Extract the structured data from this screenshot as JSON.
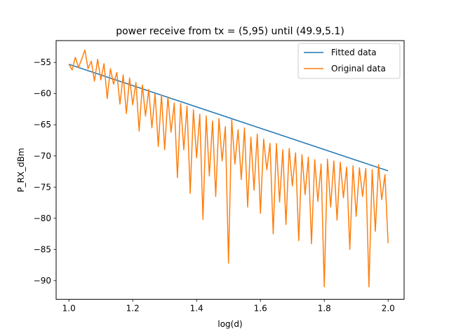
{
  "chart_data": {
    "type": "line",
    "title": "power receive  from tx = (5,95) until (49.9,5.1)",
    "xlabel": "log(d)",
    "ylabel": "P_RX_dBm",
    "xlim": [
      0.96,
      2.05
    ],
    "ylim": [
      -93,
      -51.5
    ],
    "x_ticks": [
      1.0,
      1.2,
      1.4,
      1.6,
      1.8,
      2.0
    ],
    "x_tick_labels": [
      "1.0",
      "1.2",
      "1.4",
      "1.6",
      "1.8",
      "2.0"
    ],
    "y_ticks": [
      -55,
      -60,
      -65,
      -70,
      -75,
      -80,
      -85,
      -90
    ],
    "y_tick_labels": [
      "−55",
      "−60",
      "−65",
      "−70",
      "−75",
      "−80",
      "−85",
      "−90"
    ],
    "grid": false,
    "legend_position": "upper right",
    "series": [
      {
        "name": "Fitted data",
        "color": "#1f77b4",
        "x": [
          1.0,
          2.0
        ],
        "y": [
          -55.3,
          -72.4
        ]
      },
      {
        "name": "Original data",
        "color": "#ff7f0e",
        "x": [
          1.0,
          1.01,
          1.02,
          1.03,
          1.04,
          1.05,
          1.06,
          1.07,
          1.08,
          1.09,
          1.1,
          1.11,
          1.12,
          1.13,
          1.14,
          1.15,
          1.16,
          1.17,
          1.18,
          1.19,
          1.2,
          1.21,
          1.22,
          1.23,
          1.24,
          1.25,
          1.26,
          1.27,
          1.28,
          1.29,
          1.3,
          1.31,
          1.32,
          1.33,
          1.34,
          1.35,
          1.36,
          1.37,
          1.38,
          1.39,
          1.4,
          1.41,
          1.42,
          1.43,
          1.44,
          1.45,
          1.46,
          1.47,
          1.48,
          1.49,
          1.5,
          1.51,
          1.52,
          1.53,
          1.54,
          1.55,
          1.56,
          1.57,
          1.58,
          1.59,
          1.6,
          1.61,
          1.62,
          1.63,
          1.64,
          1.65,
          1.66,
          1.67,
          1.68,
          1.69,
          1.7,
          1.71,
          1.72,
          1.73,
          1.74,
          1.75,
          1.76,
          1.77,
          1.78,
          1.79,
          1.8,
          1.81,
          1.82,
          1.83,
          1.84,
          1.85,
          1.86,
          1.87,
          1.88,
          1.89,
          1.9,
          1.91,
          1.92,
          1.93,
          1.94,
          1.95,
          1.96,
          1.97,
          1.98,
          1.99,
          2.0
        ],
        "y": [
          -55.3,
          -56.2,
          -54.2,
          -55.8,
          -54.5,
          -53.0,
          -56.0,
          -54.8,
          -58.0,
          -54.5,
          -57.8,
          -55.2,
          -60.8,
          -56.0,
          -58.5,
          -56.6,
          -61.7,
          -57.0,
          -63.2,
          -57.5,
          -61.8,
          -58.2,
          -66.0,
          -58.6,
          -63.6,
          -59.3,
          -65.5,
          -60.0,
          -68.5,
          -60.2,
          -69.0,
          -60.5,
          -66.2,
          -61.5,
          -73.5,
          -61.6,
          -69.0,
          -62.0,
          -76.0,
          -62.6,
          -70.3,
          -63.3,
          -80.2,
          -63.6,
          -73.2,
          -64.4,
          -76.5,
          -64.0,
          -70.8,
          -65.3,
          -87.2,
          -64.2,
          -71.3,
          -65.8,
          -73.8,
          -65.5,
          -78.2,
          -67.0,
          -75.5,
          -66.5,
          -79.2,
          -67.3,
          -72.2,
          -68.0,
          -82.5,
          -68.0,
          -77.4,
          -69.0,
          -81.0,
          -68.8,
          -74.8,
          -69.5,
          -83.6,
          -69.8,
          -76.2,
          -70.2,
          -84.1,
          -70.6,
          -77.3,
          -71.3,
          -91.0,
          -70.5,
          -78.2,
          -70.8,
          -80.3,
          -71.0,
          -76.7,
          -71.8,
          -85.0,
          -71.6,
          -79.7,
          -71.9,
          -76.5,
          -72.0,
          -91.0,
          -72.2,
          -82.1,
          -71.4,
          -77.0,
          -73.0,
          -84.0
        ]
      }
    ]
  }
}
